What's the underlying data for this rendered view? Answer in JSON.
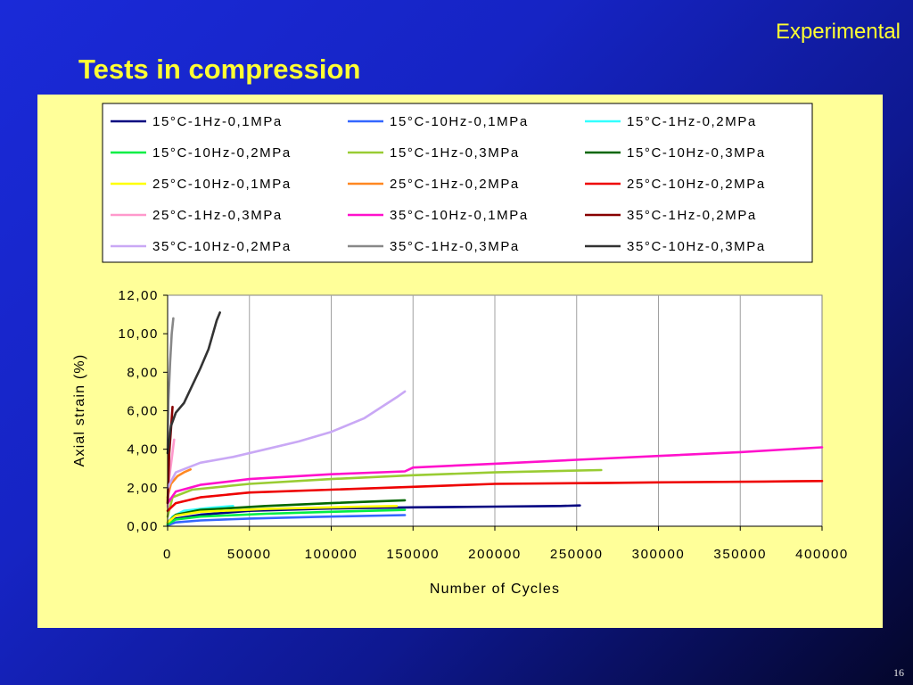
{
  "slide": {
    "header_label": "Experimental",
    "title": "Tests in compression",
    "page_number": "16"
  },
  "colors": {
    "background": "#1a2ad8",
    "accent_text": "#ffff33",
    "chart_background": "#ffff99"
  },
  "chart_data": {
    "type": "line",
    "title": "",
    "xlabel": "Number of Cycles",
    "ylabel": "Axial strain (%)",
    "xlim": [
      0,
      400000
    ],
    "ylim": [
      0,
      12
    ],
    "x_ticks": [
      "0",
      "50000",
      "100000",
      "150000",
      "200000",
      "250000",
      "300000",
      "350000",
      "400000"
    ],
    "y_ticks": [
      "0,00",
      "2,00",
      "4,00",
      "6,00",
      "8,00",
      "10,00",
      "12,00"
    ],
    "grid": "vertical",
    "legend_position": "top",
    "series": [
      {
        "name": "15°C-1Hz-0,1MPa",
        "color": "#000080",
        "x": [
          0,
          5000,
          20000,
          50000,
          100000,
          150000,
          200000,
          240000,
          252000
        ],
        "y": [
          0.1,
          0.4,
          0.6,
          0.8,
          0.92,
          0.98,
          1.02,
          1.05,
          1.08
        ]
      },
      {
        "name": "15°C-10Hz-0,1MPa",
        "color": "#3366ff",
        "x": [
          0,
          5000,
          20000,
          50000,
          90000,
          110000,
          145000
        ],
        "y": [
          0.05,
          0.2,
          0.3,
          0.4,
          0.48,
          0.52,
          0.58
        ]
      },
      {
        "name": "15°C-1Hz-0,2MPa",
        "color": "#33ffff",
        "x": [
          0,
          3000,
          10000,
          25000,
          40000
        ],
        "y": [
          0.1,
          0.5,
          0.8,
          0.95,
          1.05
        ]
      },
      {
        "name": "15°C-10Hz-0,2MPa",
        "color": "#00ee44",
        "x": [
          0,
          5000,
          20000,
          60000,
          100000,
          145000
        ],
        "y": [
          0.1,
          0.35,
          0.5,
          0.65,
          0.75,
          0.85
        ]
      },
      {
        "name": "15°C-1Hz-0,3MPa",
        "color": "#99cc33",
        "x": [
          0,
          3000,
          15000,
          50000,
          100000,
          150000,
          200000,
          265000
        ],
        "y": [
          0.5,
          1.5,
          1.9,
          2.2,
          2.45,
          2.65,
          2.8,
          2.92
        ]
      },
      {
        "name": "15°C-10Hz-0,3MPa",
        "color": "#006600",
        "x": [
          0,
          5000,
          20000,
          60000,
          100000,
          145000
        ],
        "y": [
          0.2,
          0.6,
          0.85,
          1.05,
          1.2,
          1.35
        ]
      },
      {
        "name": "25°C-10Hz-0,1MPa",
        "color": "#ffff00",
        "x": [
          0,
          5000,
          20000,
          60000,
          100000,
          140000
        ],
        "y": [
          0.2,
          0.55,
          0.75,
          0.9,
          0.98,
          1.05
        ]
      },
      {
        "name": "25°C-1Hz-0,2MPa",
        "color": "#ff8822",
        "x": [
          0,
          2000,
          6000,
          10000,
          14000
        ],
        "y": [
          1.5,
          2.2,
          2.6,
          2.8,
          2.95
        ]
      },
      {
        "name": "25°C-10Hz-0,2MPa",
        "color": "#ee0000",
        "x": [
          0,
          5000,
          20000,
          50000,
          100000,
          150000,
          200000,
          270000,
          300000,
          365000,
          400000
        ],
        "y": [
          0.8,
          1.2,
          1.5,
          1.75,
          1.9,
          2.05,
          2.2,
          2.25,
          2.28,
          2.32,
          2.35
        ]
      },
      {
        "name": "25°C-1Hz-0,3MPa",
        "color": "#ff99cc",
        "x": [
          0,
          1000,
          2500,
          4000
        ],
        "y": [
          1.0,
          2.5,
          3.5,
          4.5
        ]
      },
      {
        "name": "35°C-10Hz-0,1MPa",
        "color": "#ff11cc",
        "x": [
          0,
          5000,
          20000,
          50000,
          100000,
          145000,
          150000,
          200000,
          250000,
          300000,
          350000,
          400000
        ],
        "y": [
          1.2,
          1.8,
          2.15,
          2.45,
          2.7,
          2.85,
          3.05,
          3.25,
          3.45,
          3.65,
          3.85,
          4.1
        ]
      },
      {
        "name": "35°C-1Hz-0,2MPa",
        "color": "#880000",
        "x": [
          0,
          500,
          1000,
          2000,
          3000
        ],
        "y": [
          1.2,
          2.5,
          3.8,
          5.0,
          6.2
        ]
      },
      {
        "name": "35°C-10Hz-0,2MPa",
        "color": "#c9a8f5",
        "x": [
          0,
          5000,
          20000,
          40000,
          60000,
          80000,
          100000,
          120000,
          140000,
          145000
        ],
        "y": [
          2.0,
          2.8,
          3.3,
          3.6,
          4.0,
          4.4,
          4.9,
          5.6,
          6.7,
          7.0
        ]
      },
      {
        "name": "35°C-1Hz-0,3MPa",
        "color": "#888888",
        "x": [
          0,
          500,
          1500,
          2500,
          3500
        ],
        "y": [
          4.0,
          6.5,
          8.5,
          10.0,
          10.8
        ]
      },
      {
        "name": "35°C-10Hz-0,3MPa",
        "color": "#333333",
        "x": [
          0,
          2000,
          5000,
          10000,
          15000,
          20000,
          25000,
          30000,
          32000
        ],
        "y": [
          3.8,
          5.2,
          5.9,
          6.4,
          7.3,
          8.2,
          9.2,
          10.7,
          11.1
        ]
      }
    ]
  }
}
